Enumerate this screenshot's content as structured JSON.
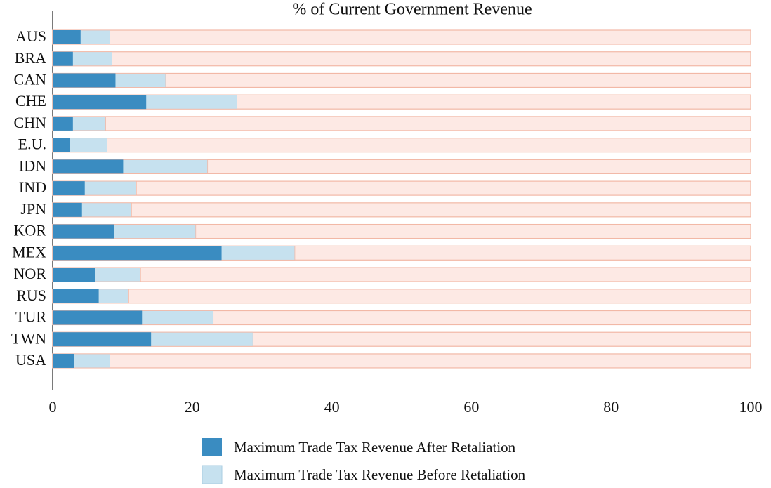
{
  "chart_data": {
    "type": "bar",
    "orientation": "horizontal",
    "title": "% of Current Government Revenue",
    "categories": [
      "AUS",
      "BRA",
      "CAN",
      "CHE",
      "CHN",
      "E.U.",
      "IDN",
      "IND",
      "JPN",
      "KOR",
      "MEX",
      "NOR",
      "RUS",
      "TUR",
      "TWN",
      "USA"
    ],
    "series": [
      {
        "name": "Maximum Trade Tax Revenue After Retaliation",
        "color": "#3a8cc1",
        "values": [
          4.0,
          2.9,
          9.0,
          13.4,
          2.9,
          2.5,
          10.1,
          4.6,
          4.2,
          8.8,
          24.2,
          6.1,
          6.6,
          12.8,
          14.1,
          3.1
        ]
      },
      {
        "name": "Maximum Trade Tax Revenue Before Retaliation",
        "color": "#c6e1ef",
        "values": [
          8.2,
          8.5,
          16.2,
          26.4,
          7.6,
          7.8,
          22.2,
          12.0,
          11.3,
          20.5,
          34.7,
          12.6,
          10.9,
          23.0,
          28.7,
          8.2
        ]
      }
    ],
    "xlim": [
      0,
      100
    ],
    "xticks": [
      0,
      20,
      40,
      60,
      80,
      100
    ]
  }
}
